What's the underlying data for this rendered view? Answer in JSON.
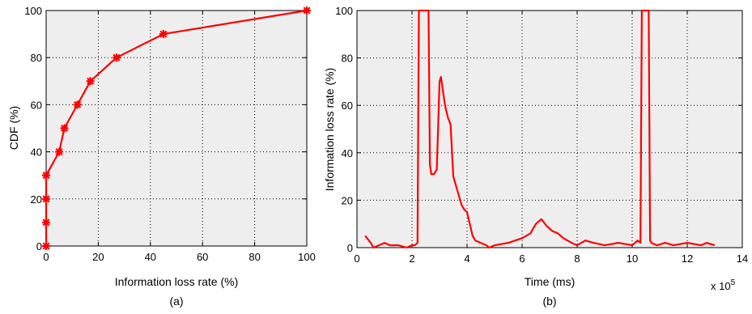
{
  "chart_data": [
    {
      "type": "line",
      "panel_caption": "(a)",
      "title": "",
      "xlabel": "Information loss rate (%)",
      "ylabel": "CDF (%)",
      "xlim": [
        0,
        100
      ],
      "ylim": [
        0,
        100
      ],
      "xticks": [
        0,
        20,
        40,
        60,
        80,
        100
      ],
      "yticks": [
        0,
        20,
        40,
        60,
        80,
        100
      ],
      "grid": true,
      "line_color": "#ff0000",
      "marker": "star",
      "series": [
        {
          "x": [
            0,
            0,
            0,
            0,
            5,
            7,
            12,
            17,
            27,
            45,
            100
          ],
          "y": [
            0,
            10,
            20,
            30,
            40,
            50,
            60,
            70,
            80,
            90,
            100
          ]
        }
      ]
    },
    {
      "type": "line",
      "panel_caption": "(b)",
      "title": "",
      "xlabel": "Time (ms)",
      "ylabel": "Information loss rate (%)",
      "x_multiplier": "x 10",
      "x_multiplier_exp": "5",
      "xlim": [
        0,
        14
      ],
      "ylim": [
        0,
        100
      ],
      "xticks": [
        0,
        2,
        4,
        6,
        8,
        10,
        12,
        14
      ],
      "yticks": [
        0,
        20,
        40,
        60,
        80,
        100
      ],
      "grid": true,
      "line_color": "#ff0000",
      "series": [
        {
          "x": [
            0.3,
            0.5,
            0.6,
            0.8,
            1.0,
            1.2,
            1.5,
            1.8,
            2.0,
            2.1,
            2.2,
            2.25,
            2.3,
            2.6,
            2.65,
            2.7,
            2.8,
            2.9,
            3.0,
            3.05,
            3.1,
            3.2,
            3.3,
            3.4,
            3.5,
            3.6,
            3.7,
            3.8,
            3.9,
            4.0,
            4.1,
            4.2,
            4.3,
            4.5,
            4.7,
            4.8,
            5.0,
            5.5,
            6.0,
            6.3,
            6.5,
            6.7,
            6.9,
            7.1,
            7.3,
            7.5,
            7.8,
            8.0,
            8.3,
            8.6,
            9.0,
            9.5,
            10.0,
            10.2,
            10.3,
            10.35,
            10.4,
            10.6,
            10.65,
            10.7,
            10.9,
            11.2,
            11.5,
            12.0,
            12.5,
            12.7,
            13.0
          ],
          "y": [
            5,
            2,
            0,
            1,
            2,
            1,
            1,
            0,
            1,
            1,
            2,
            100,
            100,
            100,
            35,
            31,
            31,
            33,
            70,
            72,
            68,
            60,
            55,
            52,
            30,
            26,
            22,
            18,
            16,
            15,
            10,
            5,
            3,
            2,
            1,
            0,
            1,
            2,
            4,
            6,
            10,
            12,
            9,
            7,
            6,
            4,
            2,
            1,
            3,
            2,
            1,
            2,
            1,
            3,
            2,
            100,
            100,
            100,
            3,
            2,
            1,
            2,
            1,
            2,
            1,
            2,
            1
          ]
        }
      ]
    }
  ]
}
